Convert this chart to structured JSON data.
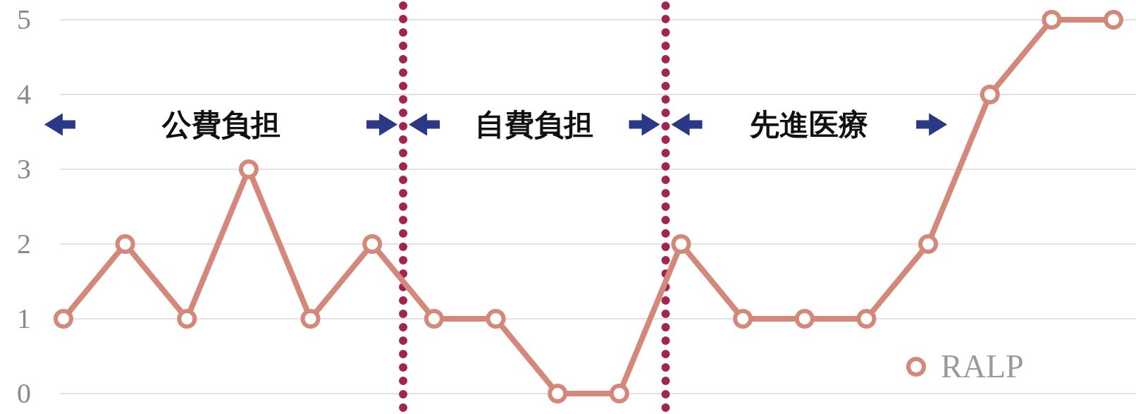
{
  "chart_data": {
    "type": "line",
    "categories": [
      null,
      null,
      null,
      null,
      null,
      null,
      null,
      null,
      null,
      null,
      null,
      null,
      null,
      null,
      null,
      null,
      null,
      null
    ],
    "series": [
      {
        "name": "RALP",
        "color": "#d4887a",
        "values": [
          1,
          2,
          1,
          3,
          1,
          2,
          1,
          1,
          0,
          0,
          2,
          1,
          1,
          1,
          2,
          4,
          5,
          5
        ]
      }
    ],
    "ylim": [
      0,
      5
    ],
    "yticks": [
      0,
      1,
      2,
      3,
      4,
      5
    ],
    "grid": "y",
    "marker": "circle",
    "line_style": "solid",
    "legend": "bottom right",
    "annotations": [
      "公費負担",
      "自費負担",
      "先進医療"
    ]
  }
}
